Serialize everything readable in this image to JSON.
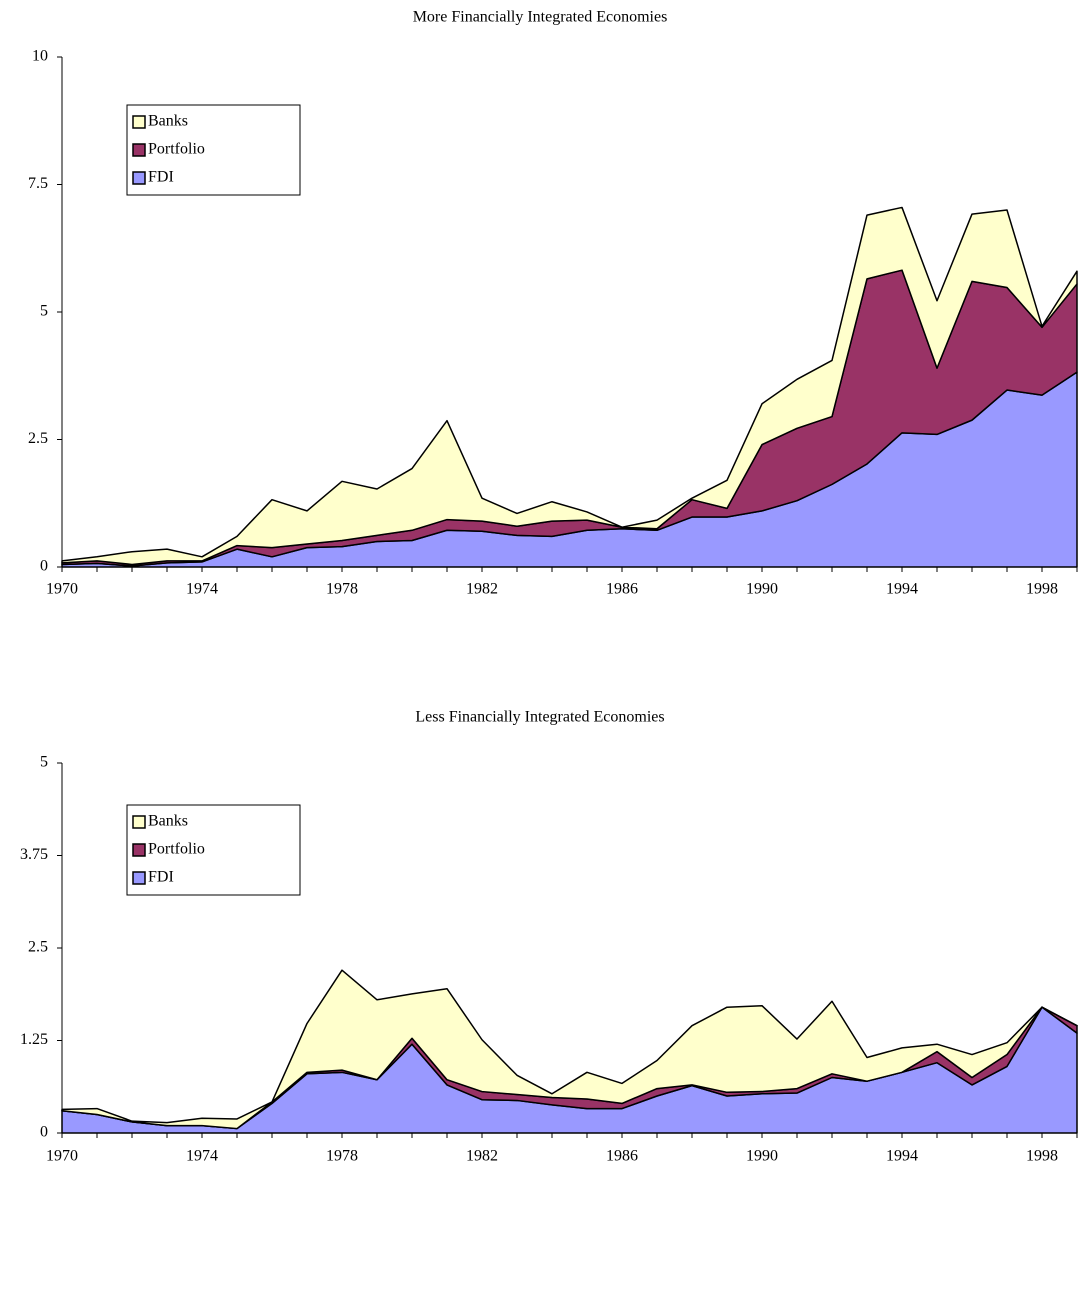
{
  "chart_data": [
    {
      "type": "area",
      "stacked": true,
      "title": "More Financially Integrated Economies",
      "categories": [
        "1970",
        null,
        null,
        null,
        "1974",
        null,
        null,
        null,
        "1978",
        null,
        null,
        null,
        "1982",
        null,
        null,
        null,
        "1986",
        null,
        null,
        null,
        "1990",
        null,
        null,
        null,
        "1994",
        null,
        null,
        null,
        "1998",
        null
      ],
      "series": [
        {
          "name": "FDI",
          "color": "#9999ff",
          "values": [
            0.05,
            0.07,
            0.02,
            0.08,
            0.1,
            0.35,
            0.2,
            0.38,
            0.4,
            0.5,
            0.52,
            0.72,
            0.7,
            0.62,
            0.6,
            0.72,
            0.75,
            0.72,
            0.98,
            0.98,
            1.1,
            1.3,
            1.62,
            2.02,
            2.63,
            2.6,
            2.88,
            3.47,
            3.37,
            3.82
          ]
        },
        {
          "name": "Portfolio",
          "color": "#993366",
          "values": [
            0.03,
            0.05,
            0.03,
            0.04,
            0.02,
            0.07,
            0.18,
            0.07,
            0.12,
            0.12,
            0.2,
            0.21,
            0.2,
            0.18,
            0.3,
            0.2,
            0.03,
            0.03,
            0.34,
            0.17,
            1.3,
            1.42,
            1.33,
            3.63,
            3.19,
            1.3,
            2.72,
            2.01,
            1.33,
            1.73
          ]
        },
        {
          "name": "Banks",
          "color": "#ffffcc",
          "values": [
            0.04,
            0.08,
            0.25,
            0.23,
            0.08,
            0.18,
            0.94,
            0.65,
            1.16,
            0.91,
            1.21,
            1.94,
            0.45,
            0.25,
            0.38,
            0.16,
            0,
            0.17,
            0.03,
            0.55,
            0.8,
            0.96,
            1.1,
            1.25,
            1.23,
            1.32,
            1.32,
            1.52,
            0.02,
            0.25
          ]
        }
      ],
      "ylim": [
        0,
        10
      ],
      "yticks": [
        0,
        2.5,
        5,
        7.5,
        10
      ],
      "legend": "upper left"
    },
    {
      "type": "area",
      "stacked": true,
      "title": "Less Financially Integrated Economies",
      "categories": [
        "1970",
        null,
        null,
        null,
        "1974",
        null,
        null,
        null,
        "1978",
        null,
        null,
        null,
        "1982",
        null,
        null,
        null,
        "1986",
        null,
        null,
        null,
        "1990",
        null,
        null,
        null,
        "1994",
        null,
        null,
        null,
        "1998",
        null
      ],
      "series": [
        {
          "name": "FDI",
          "color": "#9999ff",
          "values": [
            0.3,
            0.25,
            0.15,
            0.1,
            0.1,
            0.06,
            0.4,
            0.8,
            0.82,
            0.72,
            1.2,
            0.65,
            0.45,
            0.44,
            0.38,
            0.33,
            0.33,
            0.5,
            0.64,
            0.5,
            0.53,
            0.54,
            0.75,
            0.7,
            0.82,
            0.95,
            0.65,
            0.9,
            1.7,
            1.35
          ]
        },
        {
          "name": "Portfolio",
          "color": "#993366",
          "values": [
            0,
            0,
            0,
            0,
            0,
            0,
            0.02,
            0.02,
            0.03,
            0,
            0.08,
            0.07,
            0.11,
            0.08,
            0.1,
            0.13,
            0.07,
            0.1,
            0.01,
            0.05,
            0.03,
            0.06,
            0.05,
            0,
            0,
            0.15,
            0.1,
            0.16,
            0,
            0.1
          ]
        },
        {
          "name": "Banks",
          "color": "#ffffcc",
          "values": [
            0.02,
            0.08,
            0.01,
            0.04,
            0.1,
            0.13,
            0,
            0.66,
            1.35,
            1.08,
            0.6,
            1.23,
            0.7,
            0.26,
            0.05,
            0.36,
            0.27,
            0.38,
            0.8,
            1.15,
            1.16,
            0.67,
            0.98,
            0.32,
            0.33,
            0.1,
            0.31,
            0.16,
            0,
            0
          ]
        }
      ],
      "ylim": [
        0,
        5
      ],
      "yticks": [
        0,
        1.25,
        2.5,
        3.75,
        5
      ],
      "legend": "upper left"
    }
  ]
}
